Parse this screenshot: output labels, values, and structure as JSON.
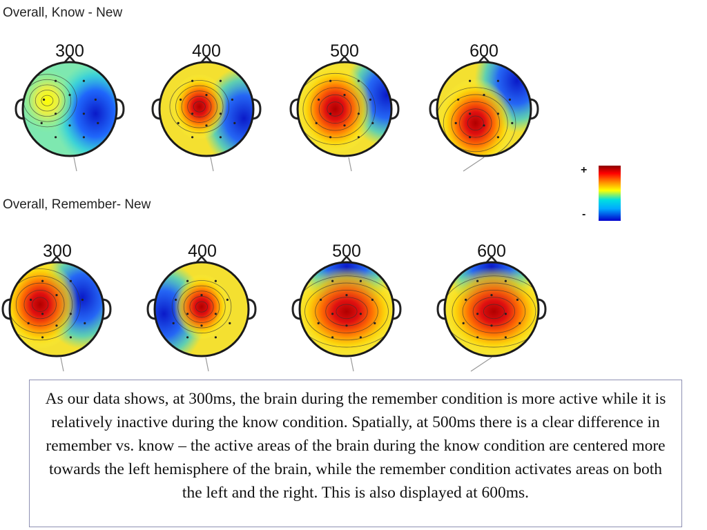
{
  "rows": [
    {
      "title": "Overall, Know - New",
      "maps": [
        {
          "label": "300",
          "hot": [
            -0.48,
            -0.18
          ],
          "cold": [
            0.55,
            0.1
          ],
          "level": 0.45
        },
        {
          "label": "400",
          "hot": [
            -0.15,
            -0.05
          ],
          "cold": [
            0.8,
            0.2
          ],
          "level": 0.85
        },
        {
          "label": "500",
          "hot": [
            -0.2,
            0.0
          ],
          "cold": [
            0.9,
            -0.3
          ],
          "level": 0.95
        },
        {
          "label": "600",
          "hot": [
            -0.18,
            0.3
          ],
          "cold": [
            0.7,
            -0.6
          ],
          "level": 0.95
        }
      ]
    },
    {
      "title": "Overall, Remember- New",
      "maps": [
        {
          "label": "300",
          "hot": [
            -0.35,
            -0.1
          ],
          "cold": [
            0.55,
            -0.25
          ],
          "level": 0.95
        },
        {
          "label": "400",
          "hot": [
            0.0,
            -0.05
          ],
          "cold": [
            -0.8,
            0.1
          ],
          "level": 0.9
        },
        {
          "label": "500",
          "hot": [
            0.0,
            0.05
          ],
          "cold": [
            0.0,
            -0.9
          ],
          "level": 1.0
        },
        {
          "label": "600",
          "hot": [
            0.05,
            0.05
          ],
          "cold": [
            0.0,
            -0.9
          ],
          "level": 0.95
        }
      ]
    }
  ],
  "colorbar": {
    "plus": "+",
    "minus": "-"
  },
  "caption": "As our data shows, at 300ms, the brain during the remember condition is more active while it is relatively inactive during the know condition. Spatially, at 500ms there is a clear difference in remember vs. know – the active areas of the brain during the know condition are centered more towards the left hemisphere of the brain, while the remember condition activates areas on both the left and the right.  This is also displayed at 600ms."
}
